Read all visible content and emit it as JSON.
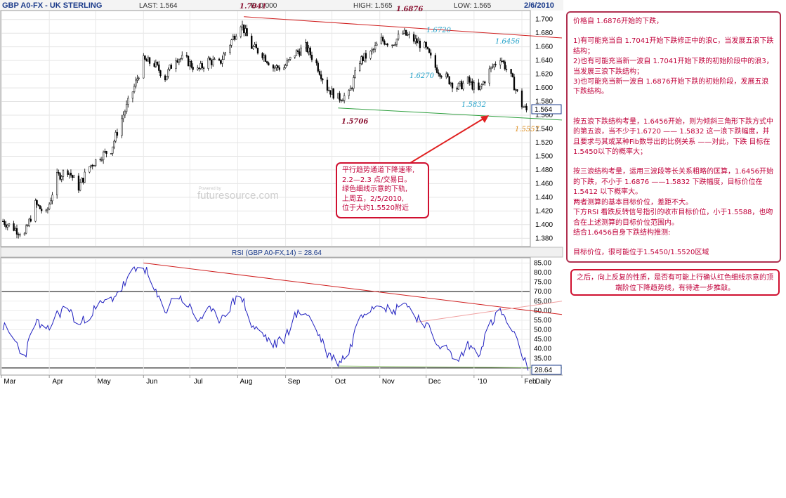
{
  "header": {
    "symbol": "GBP A0-FX - UK STERLING",
    "last": "LAST: 1.564",
    "chg": "E: 0.000",
    "high": "HIGH: 1.565",
    "low": "LOW: 1.565",
    "date": "2/6/2010"
  },
  "watermark_top": "Powered by",
  "watermark": "futuresource.com",
  "price_chart": {
    "yticks": [
      "1.700",
      "1.680",
      "1.660",
      "1.640",
      "1.620",
      "1.600",
      "1.580",
      "1.560",
      "1.540",
      "1.520",
      "1.500",
      "1.480",
      "1.460",
      "1.440",
      "1.420",
      "1.400",
      "1.380"
    ],
    "last_label": "1.564",
    "annotations": {
      "a1": "1.7041",
      "a2": "1.6876",
      "a3": "1.6720",
      "a4": "1.6456",
      "a5": "1.6270",
      "a6": "1.5832",
      "a7": "1.5706",
      "a8": "1.5557"
    }
  },
  "rsi_chart": {
    "title": "RSI (GBP A0-FX,14) = 28.64",
    "yticks": [
      "85.00",
      "80.00",
      "75.00",
      "70.00",
      "65.00",
      "60.00",
      "55.00",
      "50.00",
      "45.00",
      "40.00",
      "35.00",
      "30.00"
    ],
    "last_label": "28.64"
  },
  "xaxis": {
    "months": [
      "Mar",
      "Apr",
      "May",
      "Jun",
      "Jul",
      "Aug",
      "Sep",
      "Oct",
      "Nov",
      "Dec",
      "'10",
      "Feb"
    ],
    "period": "Daily"
  },
  "callout": {
    "lines": [
      "平行趋势通道下降速率,",
      "2.2—2.3 点/交易日。",
      "绿色细线示意的下轨,",
      "上周五，2/5/2010,",
      "位于大约1.5520附近"
    ]
  },
  "panel": {
    "p1": "价格自 1.6876开始的下跌，",
    "p2": "1)有可能充当自 1.7041开始下跌修正中的浪C，当发展五浪下跌结构；",
    "p3": "2)也有可能充当新一波自 1.7041开始下跌的初始阶段中的浪3，当发展三浪下跌结构；",
    "p4": "3)也可能充当新一波自 1.6876开始下跌的初始阶段，发展五浪下跌结构。",
    "p5": "按五浪下跌结构考量，1.6456开始，则为倾斜三角形下跌方式中的第五浪，当不少于1.6720 —— 1.5832 这一浪下跌幅度，并且要求与其或某种Fib数导出的比例关系 ——对此，下跌 目标在1.5450以下的概率大；",
    "p6": "按三浪结构考量，运用三波段等长关系粗略的匡算，1.6456开始的下跌，不小于 1.6876 ——1.5832 下跌幅度，目标价位在1.5412 以下概率大。",
    "p7": "两者测算的基本目标价位，差距不大。",
    "p8": "下方RSI 看跌反转信号指引的收市目标价位，小于1.5588，也吻合在上述测算的目标价位范围内。",
    "p9": "结合1.6456自身下跌结构推测:",
    "p10": "目标价位，很可能位于1.5450/1.5520区域"
  },
  "note2": {
    "text": "之后，向上反复的性质，是否有可能上行确认红色细线示意的顶端阶位下降趋势线，有待进一步推敲。"
  },
  "chart_data": [
    {
      "type": "candlestick",
      "title": "GBP A0-FX - UK STERLING",
      "x_range": [
        "2009-03",
        "2010-02"
      ],
      "ylim": [
        1.37,
        1.71
      ],
      "close_series": [
        [
          "2009-03-02",
          1.405
        ],
        [
          "2009-03-09",
          1.395
        ],
        [
          "2009-03-16",
          1.385
        ],
        [
          "2009-03-23",
          1.43
        ],
        [
          "2009-03-30",
          1.415
        ],
        [
          "2009-04-06",
          1.47
        ],
        [
          "2009-04-13",
          1.48
        ],
        [
          "2009-04-20",
          1.455
        ],
        [
          "2009-04-27",
          1.485
        ],
        [
          "2009-05-04",
          1.5
        ],
        [
          "2009-05-11",
          1.51
        ],
        [
          "2009-05-18",
          1.555
        ],
        [
          "2009-05-25",
          1.595
        ],
        [
          "2009-06-01",
          1.64
        ],
        [
          "2009-06-08",
          1.635
        ],
        [
          "2009-06-15",
          1.615
        ],
        [
          "2009-06-22",
          1.645
        ],
        [
          "2009-06-29",
          1.64
        ],
        [
          "2009-07-06",
          1.625
        ],
        [
          "2009-07-13",
          1.64
        ],
        [
          "2009-07-20",
          1.635
        ],
        [
          "2009-07-27",
          1.665
        ],
        [
          "2009-08-03",
          1.695
        ],
        [
          "2009-08-10",
          1.66
        ],
        [
          "2009-08-17",
          1.65
        ],
        [
          "2009-08-24",
          1.63
        ],
        [
          "2009-08-31",
          1.63
        ],
        [
          "2009-09-07",
          1.65
        ],
        [
          "2009-09-14",
          1.66
        ],
        [
          "2009-09-21",
          1.635
        ],
        [
          "2009-09-28",
          1.6
        ],
        [
          "2009-10-05",
          1.585
        ],
        [
          "2009-10-12",
          1.59
        ],
        [
          "2009-10-19",
          1.64
        ],
        [
          "2009-10-26",
          1.65
        ],
        [
          "2009-11-02",
          1.67
        ],
        [
          "2009-11-09",
          1.665
        ],
        [
          "2009-11-16",
          1.68
        ],
        [
          "2009-11-23",
          1.67
        ],
        [
          "2009-11-30",
          1.66
        ],
        [
          "2009-12-07",
          1.63
        ],
        [
          "2009-12-14",
          1.615
        ],
        [
          "2009-12-21",
          1.6
        ],
        [
          "2009-12-28",
          1.61
        ],
        [
          "2010-01-04",
          1.595
        ],
        [
          "2010-01-11",
          1.625
        ],
        [
          "2010-01-18",
          1.645
        ],
        [
          "2010-01-25",
          1.615
        ],
        [
          "2010-02-01",
          1.575
        ],
        [
          "2010-02-05",
          1.564
        ]
      ],
      "last": 1.564,
      "trendlines": [
        {
          "color": "#d02020",
          "from": [
            "2009-08-05",
            1.7041
          ],
          "to": [
            "2010-02-06",
            1.673
          ]
        },
        {
          "color": "#30a040",
          "from": [
            "2009-10-05",
            1.5706
          ],
          "to": [
            "2010-02-06",
            1.553
          ]
        }
      ]
    },
    {
      "type": "line",
      "title": "RSI (GBP A0-FX,14) = 28.64",
      "ylim": [
        27,
        87
      ],
      "reference_lines": [
        70,
        30
      ],
      "series": [
        {
          "values": [
            [
              "2009-03-02",
              52
            ],
            [
              "2009-03-09",
              45
            ],
            [
              "2009-03-16",
              36
            ],
            [
              "2009-03-23",
              55
            ],
            [
              "2009-03-30",
              48
            ],
            [
              "2009-04-06",
              58
            ],
            [
              "2009-04-13",
              62
            ],
            [
              "2009-04-20",
              52
            ],
            [
              "2009-04-27",
              58
            ],
            [
              "2009-05-04",
              63
            ],
            [
              "2009-05-11",
              66
            ],
            [
              "2009-05-18",
              72
            ],
            [
              "2009-05-25",
              80
            ],
            [
              "2009-06-01",
              84
            ],
            [
              "2009-06-08",
              70
            ],
            [
              "2009-06-15",
              60
            ],
            [
              "2009-06-22",
              68
            ],
            [
              "2009-06-29",
              64
            ],
            [
              "2009-07-06",
              55
            ],
            [
              "2009-07-13",
              60
            ],
            [
              "2009-07-20",
              56
            ],
            [
              "2009-07-27",
              62
            ],
            [
              "2009-08-03",
              69
            ],
            [
              "2009-08-10",
              52
            ],
            [
              "2009-08-17",
              48
            ],
            [
              "2009-08-24",
              42
            ],
            [
              "2009-08-31",
              45
            ],
            [
              "2009-09-07",
              57
            ],
            [
              "2009-09-14",
              60
            ],
            [
              "2009-09-21",
              50
            ],
            [
              "2009-09-28",
              38
            ],
            [
              "2009-10-05",
              33
            ],
            [
              "2009-10-12",
              38
            ],
            [
              "2009-10-19",
              58
            ],
            [
              "2009-10-26",
              62
            ],
            [
              "2009-11-02",
              65
            ],
            [
              "2009-11-09",
              58
            ],
            [
              "2009-11-16",
              66
            ],
            [
              "2009-11-23",
              58
            ],
            [
              "2009-11-30",
              54
            ],
            [
              "2009-12-07",
              44
            ],
            [
              "2009-12-14",
              40
            ],
            [
              "2009-12-21",
              33
            ],
            [
              "2009-12-28",
              42
            ],
            [
              "2010-01-04",
              38
            ],
            [
              "2010-01-11",
              52
            ],
            [
              "2010-01-18",
              60
            ],
            [
              "2010-01-25",
              50
            ],
            [
              "2010-02-01",
              38
            ],
            [
              "2010-02-05",
              28.64
            ]
          ]
        }
      ],
      "trendlines": [
        {
          "color": "#d02020",
          "from": [
            "2009-06-01",
            85
          ],
          "to": [
            "2010-02-06",
            58
          ]
        },
        {
          "color": "#f0a0a0",
          "from": [
            "2009-11-25",
            54
          ],
          "to": [
            "2010-02-06",
            65
          ]
        },
        {
          "color": "#90c070",
          "from": [
            "2009-10-05",
            31
          ],
          "to": [
            "2010-02-06",
            30
          ]
        }
      ]
    }
  ]
}
